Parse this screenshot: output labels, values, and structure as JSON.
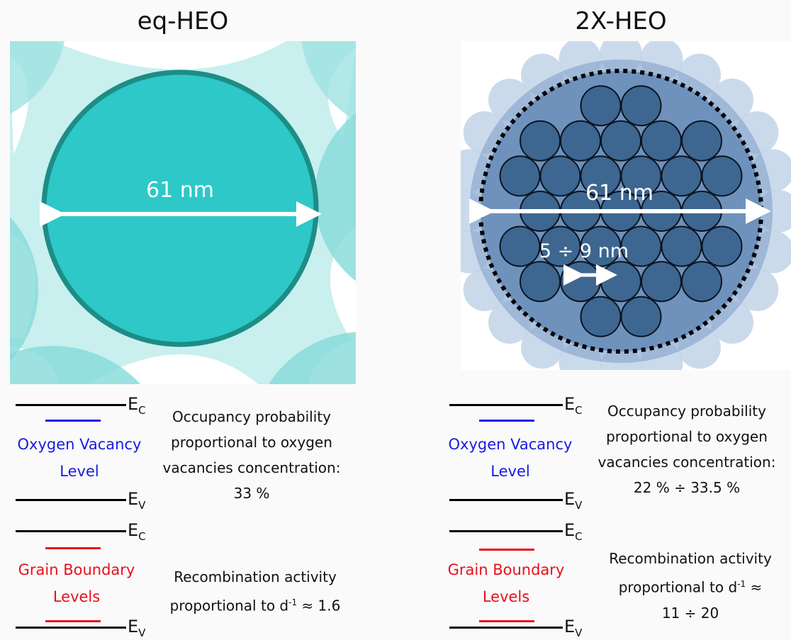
{
  "left": {
    "title": "eq-HEO",
    "diameter_label": "61 nm",
    "ec_label": "E",
    "ev_label": "E",
    "ec_sub": "C",
    "ev_sub": "V",
    "ov_level": [
      "Oxygen Vacancy",
      "Level"
    ],
    "gb_level": [
      "Grain Boundary",
      "Levels"
    ],
    "occupancy": [
      "Occupancy probability",
      "proportional to oxygen",
      "vacancies concentration:",
      "33 %"
    ],
    "recomb_line1": "Recombination activity",
    "recomb_line2_pre": "proportional to d",
    "recomb_sup": "-1",
    "recomb_line2_post": " ≈ 1.6"
  },
  "right": {
    "title": "2X-HEO",
    "diameter_label": "61 nm",
    "crystallite_label": "5 ÷ 9 nm",
    "ec_label": "E",
    "ev_label": "E",
    "ec_sub": "C",
    "ev_sub": "V",
    "ov_level": [
      "Oxygen Vacancy",
      "Level"
    ],
    "gb_level": [
      "Grain Boundary",
      "Levels"
    ],
    "occupancy": [
      "Occupancy probability",
      "proportional to oxygen",
      "vacancies concentration:",
      "22 % ÷ 33.5 %"
    ],
    "recomb_line1": "Recombination activity",
    "recomb_line2_pre": "proportional to d",
    "recomb_sup": "-1",
    "recomb_line2_post": " ≈",
    "recomb_line3": "11 ÷ 20"
  },
  "colors": {
    "eq_particle": "#2ec8c8",
    "eq_outline": "#1d8d85",
    "eq_background": "#c5eeee",
    "crystallite": "#3d6790",
    "agglomerate": "#6f92bd",
    "oxygen_vacancy_level": "#1a1adf",
    "grain_boundary_level": "#e8101a"
  }
}
